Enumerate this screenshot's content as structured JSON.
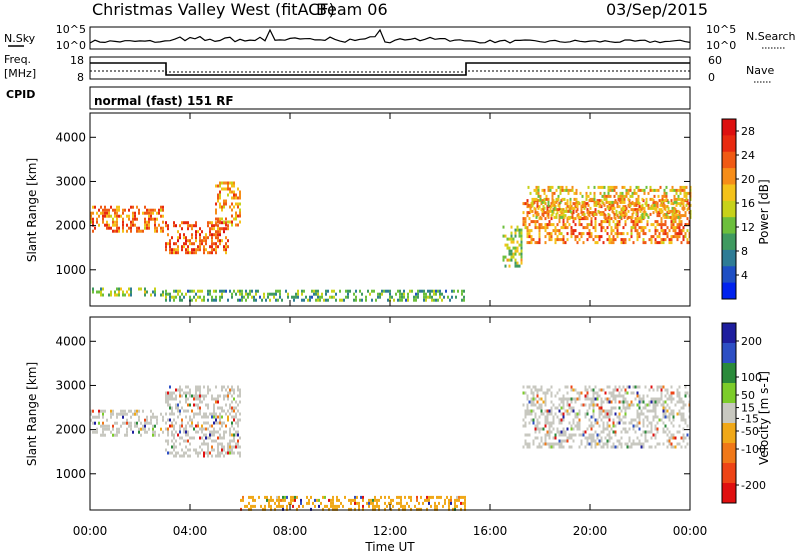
{
  "header": {
    "title": "Christmas Valley West (fitACF)",
    "beam": "Beam 06",
    "date": "03/Sep/2015"
  },
  "strip": {
    "nsky_label": "N.Sky",
    "nsearch_label": "N.Search",
    "freq_label_1": "Freq.",
    "freq_label_2": "[MHz]",
    "nave_label": "Nave",
    "cpid_label": "CPID",
    "cpid_text": "normal (fast) 151 RF",
    "noise_ticks": [
      "10^5",
      "10^0"
    ],
    "freq_ticks": [
      "18",
      "8"
    ],
    "nave_ticks": [
      "60",
      "0"
    ]
  },
  "colors": {
    "power_scale": [
      "#0022ee",
      "#1e4fc4",
      "#2e7c95",
      "#3f9a60",
      "#6cbf3c",
      "#c7d21a",
      "#f4c21a",
      "#f68d18",
      "#f05a14",
      "#e82a10",
      "#dd1010"
    ],
    "velocity_scale": [
      "#1e1e9e",
      "#2d4fc4",
      "#2a8a3a",
      "#7ccc2a",
      "#c8c8c0",
      "#f0a818",
      "#f07818",
      "#ee4416",
      "#e01010"
    ]
  },
  "chart_data": [
    {
      "type": "heatmap",
      "quantity": "Power",
      "xlabel": "Time UT",
      "ylabel": "Slant Range [km]",
      "x_ticks": [
        "00:00",
        "04:00",
        "08:00",
        "12:00",
        "16:00",
        "20:00",
        "00:00"
      ],
      "y_ticks": [
        1000,
        2000,
        3000,
        4000
      ],
      "ylim": [
        180,
        4550
      ],
      "colorbar_label": "Power [dB]",
      "colorbar_ticks": [
        4,
        8,
        12,
        16,
        20,
        24,
        28
      ],
      "colorbar_range": [
        0,
        30
      ],
      "echo_bands": [
        {
          "t0": 0.0,
          "t1": 2.9,
          "r_lo": 1900,
          "r_hi": 2450,
          "power": 22
        },
        {
          "t0": 0.0,
          "t1": 2.9,
          "r_lo": 400,
          "r_hi": 600,
          "power": 12
        },
        {
          "t0": 3.0,
          "t1": 5.5,
          "r_lo": 1400,
          "r_hi": 2100,
          "power": 24
        },
        {
          "t0": 5.0,
          "t1": 6.0,
          "r_lo": 2000,
          "r_hi": 3000,
          "power": 20
        },
        {
          "t0": 3.0,
          "t1": 15.0,
          "r_lo": 300,
          "r_hi": 550,
          "power": 10
        },
        {
          "t0": 16.5,
          "t1": 17.3,
          "r_lo": 1100,
          "r_hi": 2000,
          "power": 14
        },
        {
          "t0": 17.3,
          "t1": 24.0,
          "r_lo": 1600,
          "r_hi": 2600,
          "power": 22
        },
        {
          "t0": 17.5,
          "t1": 24.0,
          "r_lo": 2200,
          "r_hi": 2900,
          "power": 18
        }
      ]
    },
    {
      "type": "heatmap",
      "quantity": "Velocity",
      "xlabel": "Time UT",
      "ylabel": "Slant Range [km]",
      "x_ticks": [
        "00:00",
        "04:00",
        "08:00",
        "12:00",
        "16:00",
        "20:00",
        "00:00"
      ],
      "y_ticks": [
        1000,
        2000,
        3000,
        4000
      ],
      "ylim": [
        180,
        4550
      ],
      "colorbar_label": "Velocity [m s-1]",
      "colorbar_ticks": [
        200,
        100,
        50,
        15,
        -15,
        -50,
        -100,
        -200
      ],
      "colorbar_range": [
        -250,
        250
      ],
      "echo_bands": [
        {
          "t0": 0.0,
          "t1": 2.9,
          "r_lo": 1900,
          "r_hi": 2450,
          "velocity": 0
        },
        {
          "t0": 3.0,
          "t1": 6.0,
          "r_lo": 1400,
          "r_hi": 3000,
          "velocity": -10
        },
        {
          "t0": 6.0,
          "t1": 15.0,
          "r_lo": 200,
          "r_hi": 500,
          "velocity": -50
        },
        {
          "t0": 17.3,
          "t1": 24.0,
          "r_lo": 1600,
          "r_hi": 3000,
          "velocity": 0
        }
      ]
    }
  ]
}
